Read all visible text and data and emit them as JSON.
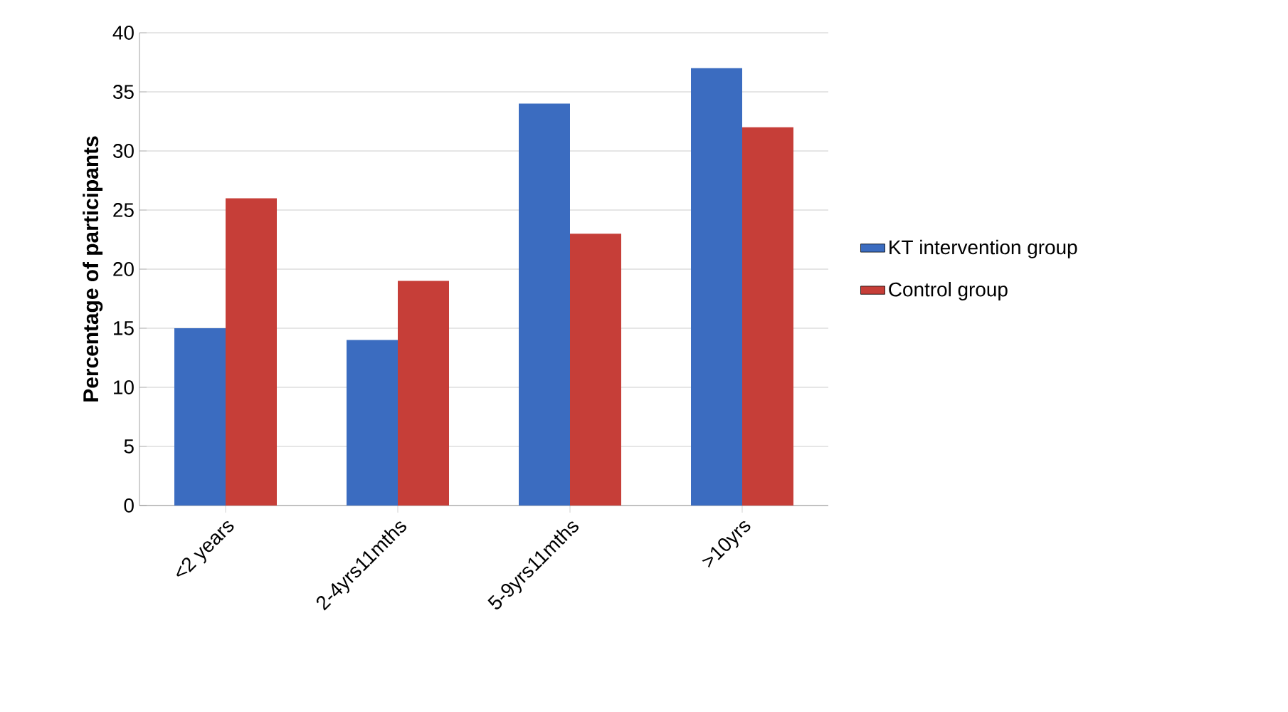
{
  "chart_data": {
    "type": "bar",
    "ylabel": "Percentage of participants",
    "categories": [
      "<2 years",
      "2-4yrs11mths",
      "5-9yrs11mths",
      ">10yrs"
    ],
    "series": [
      {
        "name": "KT intervention group",
        "color": "#3b6cc0",
        "values": [
          15,
          14,
          34,
          37
        ]
      },
      {
        "name": "Control group",
        "color": "#c63e38",
        "values": [
          26,
          19,
          23,
          32
        ]
      }
    ],
    "ylim": [
      0,
      40
    ],
    "yticks": [
      0,
      5,
      10,
      15,
      20,
      25,
      30,
      35,
      40
    ],
    "grid": "y",
    "legend": "right"
  }
}
